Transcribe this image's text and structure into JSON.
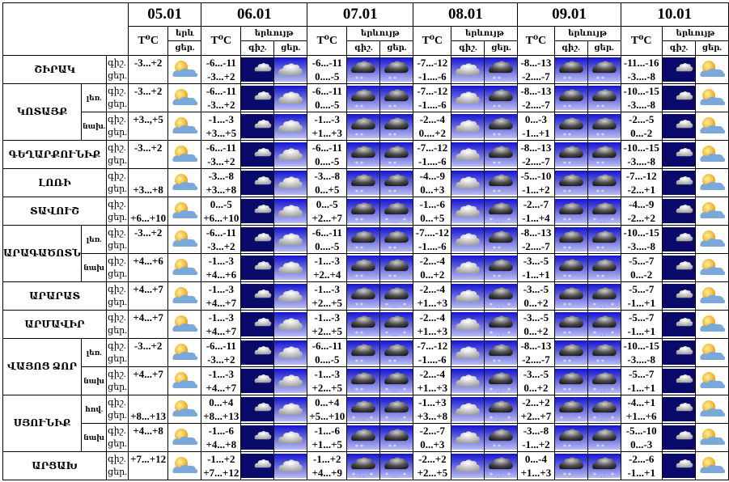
{
  "header": {
    "dates": [
      "05.01",
      "06.01",
      "07.01",
      "08.01",
      "09.01",
      "10.01"
    ],
    "temp_label": "T⁰C",
    "phenomenon_label": "երևույթ",
    "phenomenon_short": "երև",
    "night_label": "գիշ.",
    "day_label": "ցեր."
  },
  "icons": {
    "snow": "snow-cloud-icon",
    "sleet": "sleet-cloud-icon",
    "cloud": "cloud-icon",
    "moon": "moon-cloud-icon",
    "partly": "sun-cloud-icon"
  },
  "colors": {
    "icon_blue": "#1a1ad8",
    "night_navy": "#0a0a6a",
    "moon": "#f0e020"
  },
  "rows": [
    {
      "region": "ՇԻՐԱԿ",
      "sub": "",
      "t05": "-3...+2",
      "t05_line": "n",
      "days": [
        [
          "-6...-11",
          "-3...+2",
          "moon",
          "cloud"
        ],
        [
          "-6...-11",
          "0....-5",
          "snow",
          "snow"
        ],
        [
          "-7...-12",
          "-1....-6",
          "cloud",
          "snow"
        ],
        [
          "-8...-13",
          "-2....-7",
          "snow",
          "snow"
        ],
        [
          "-11...-16",
          "-3....-8",
          "moon",
          "partly"
        ]
      ]
    },
    {
      "region": "ԿՈՏԱՅՔ",
      "sub": "լեռ.",
      "t05": "-3...+2",
      "t05_line": "n",
      "days": [
        [
          "-6...-11",
          "-3...+2",
          "moon",
          "cloud"
        ],
        [
          "-6...-11",
          "0....-5",
          "snow",
          "snow"
        ],
        [
          "-7...-12",
          "-1....-6",
          "cloud",
          "snow"
        ],
        [
          "-8...-13",
          "-2....-7",
          "snow",
          "snow"
        ],
        [
          "-10...-15",
          "-3....-8",
          "moon",
          "partly"
        ]
      ]
    },
    {
      "region": "",
      "sub": "նախ.",
      "t05": "+3..,+5",
      "t05_line": "n",
      "days": [
        [
          "-1...-3",
          "+3...+5",
          "moon",
          "cloud"
        ],
        [
          "-1...-3",
          "+1...+3",
          "snow",
          "snow"
        ],
        [
          "-2...-4",
          "0....+2",
          "cloud",
          "snow"
        ],
        [
          "0...-3",
          "-1...+1",
          "snow",
          "snow"
        ],
        [
          "-2...-5",
          "0...-2",
          "moon",
          "partly"
        ]
      ]
    },
    {
      "region": "ԳԵՂԱՐՔՈՒՆԻՔ",
      "sub": "",
      "t05": "-3...+2",
      "t05_line": "n",
      "days": [
        [
          "-6...-11",
          "-3...+2",
          "moon",
          "cloud"
        ],
        [
          "-6...-11",
          "0....-5",
          "snow",
          "snow"
        ],
        [
          "-7...-12",
          "-1....-6",
          "cloud",
          "snow"
        ],
        [
          "-8...-13",
          "-2....-7",
          "snow",
          "snow"
        ],
        [
          "-10...-15",
          "-3....-8",
          "moon",
          "partly"
        ]
      ]
    },
    {
      "region": "ԼՈՌԻ",
      "sub": "",
      "t05": "+3...+8",
      "t05_line": "d",
      "days": [
        [
          "-3...-8",
          "+3...+8",
          "moon",
          "cloud"
        ],
        [
          "-3...-8",
          "0...+5",
          "snow",
          "snow"
        ],
        [
          "-4...-9",
          "0...+3",
          "cloud",
          "snow"
        ],
        [
          "-5...-10",
          "-1...+2",
          "snow",
          "snow"
        ],
        [
          "-7...-12",
          "-2...+1",
          "moon",
          "partly"
        ]
      ]
    },
    {
      "region": "ՏԱՎՈՒՇ",
      "sub": "",
      "t05": "+6...+10",
      "t05_line": "d",
      "days": [
        [
          "0...-5",
          "+6...+10",
          "moon",
          "cloud"
        ],
        [
          "0...-5",
          "+2...+7",
          "snow",
          "sleet"
        ],
        [
          "-1...-6",
          "0...+5",
          "cloud",
          "sleet"
        ],
        [
          "-2...-7",
          "-1...+4",
          "snow",
          "sleet"
        ],
        [
          "-4...-9",
          "-2...+2",
          "moon",
          "partly"
        ]
      ]
    },
    {
      "region": "ԱՐԱԳԱԾՈՏՆ",
      "sub": "լեռ.",
      "t05": "-3...+2",
      "t05_line": "n",
      "days": [
        [
          "-6...-11",
          "-3...+2",
          "moon",
          "cloud"
        ],
        [
          "-6...-11",
          "0....-5",
          "snow",
          "snow"
        ],
        [
          "-7....-12",
          "-1....-6",
          "cloud",
          "snow"
        ],
        [
          "-8...-13",
          "-2....-7",
          "snow",
          "snow"
        ],
        [
          "-10...-15",
          "-3....-8",
          "moon",
          "partly"
        ]
      ]
    },
    {
      "region": "",
      "sub": "նախ",
      "t05": "+4...+6",
      "t05_line": "n",
      "days": [
        [
          "-1...-3",
          "+4...+6",
          "moon",
          "cloud"
        ],
        [
          "-1...-3",
          "+2..+4",
          "snow",
          "snow"
        ],
        [
          "-2...-4",
          "0...+2",
          "cloud",
          "snow"
        ],
        [
          "-3...-5",
          "-1...+1",
          "snow",
          "snow"
        ],
        [
          "-5...-7",
          "0...-2",
          "moon",
          "partly"
        ]
      ]
    },
    {
      "region": "ԱՐԱՐԱՏ",
      "sub": "",
      "t05": "+4...+7",
      "t05_line": "n",
      "days": [
        [
          "-1...-3",
          "+4...+7",
          "moon",
          "cloud"
        ],
        [
          "-1...-3",
          "+2...+5",
          "snow",
          "sleet"
        ],
        [
          "-2...-4",
          "+1...+3",
          "cloud",
          "sleet"
        ],
        [
          "-3...-5",
          "0...+2",
          "snow",
          "sleet"
        ],
        [
          "-5...-7",
          "-1...+1",
          "moon",
          "partly"
        ]
      ]
    },
    {
      "region": "ԱՐՄԱՎԻՐ",
      "sub": "",
      "t05": "+4...+7",
      "t05_line": "n",
      "days": [
        [
          "-1...-3",
          "+4...+7",
          "moon",
          "cloud"
        ],
        [
          "-1...-3",
          "+2...+5",
          "snow",
          "sleet"
        ],
        [
          "-2...-4",
          "+1...+3",
          "cloud",
          "sleet"
        ],
        [
          "-3...-5",
          "0...+2",
          "snow",
          "sleet"
        ],
        [
          "-5...-7",
          "-1...+1",
          "moon",
          "partly"
        ]
      ]
    },
    {
      "region": "ՎԱՅՈՑ ՁՈՐ",
      "sub": "լեռ.",
      "t05": "-3...+2",
      "t05_line": "n",
      "days": [
        [
          "-6...-11",
          "-3...+2",
          "moon",
          "cloud"
        ],
        [
          "-6...-11",
          "0....-5",
          "snow",
          "snow"
        ],
        [
          "-7...-12",
          "-1....-6",
          "cloud",
          "snow"
        ],
        [
          "-8...-13",
          "-2....-7",
          "snow",
          "snow"
        ],
        [
          "-10...-15",
          "-3....-8",
          "moon",
          "partly"
        ]
      ]
    },
    {
      "region": "",
      "sub": "նախ",
      "t05": "+4...+7",
      "t05_line": "n",
      "days": [
        [
          "-1...-3",
          "+4...+7",
          "moon",
          "cloud"
        ],
        [
          "-1...-3",
          "+2...+5",
          "snow",
          "sleet"
        ],
        [
          "-2...-4",
          "+1...+3",
          "cloud",
          "sleet"
        ],
        [
          "-3...-5",
          "0...+2",
          "snow",
          "sleet"
        ],
        [
          "-5...-7",
          "-1...+1",
          "moon",
          "partly"
        ]
      ]
    },
    {
      "region": "ՍՅՈՒՆԻՔ",
      "sub": "հով.",
      "t05": "+8...+13",
      "t05_line": "d",
      "days": [
        [
          "0...+4",
          "+8...+13",
          "moon",
          "cloud"
        ],
        [
          "0...+4",
          "+5...+10",
          "sleet",
          "sleet"
        ],
        [
          "-1...+3",
          "+3...+8",
          "cloud",
          "sleet"
        ],
        [
          "-2...+2",
          "+2...+7",
          "sleet",
          "sleet"
        ],
        [
          "-4...+1",
          "+1...+6",
          "moon",
          "partly"
        ]
      ]
    },
    {
      "region": "",
      "sub": "նախ",
      "t05": "+4...+8",
      "t05_line": "n",
      "days": [
        [
          "-1...-6",
          "+4...+8",
          "moon",
          "cloud"
        ],
        [
          "-1...-6",
          "+1...+5",
          "snow",
          "snow"
        ],
        [
          "-2...-7",
          "0...+3",
          "cloud",
          "snow"
        ],
        [
          "-3...-8",
          "-1...+2",
          "snow",
          "snow"
        ],
        [
          "-5...-10",
          "0...-3",
          "moon",
          "partly"
        ]
      ]
    },
    {
      "region": "ԱՐՑԱԽ",
      "sub": "",
      "t05": "+7...+12",
      "t05_line": "n",
      "days": [
        [
          "-1...+2",
          "+7...+12",
          "moon",
          "cloud"
        ],
        [
          "-1...+2",
          "+4...+9",
          "sleet",
          "sleet"
        ],
        [
          "-2...+2",
          "+2...+5",
          "cloud",
          "sleet"
        ],
        [
          "0...-4",
          "+1...+3",
          "snow",
          "sleet"
        ],
        [
          "-2...-6",
          "-1...+1",
          "moon",
          "partly"
        ]
      ]
    }
  ]
}
